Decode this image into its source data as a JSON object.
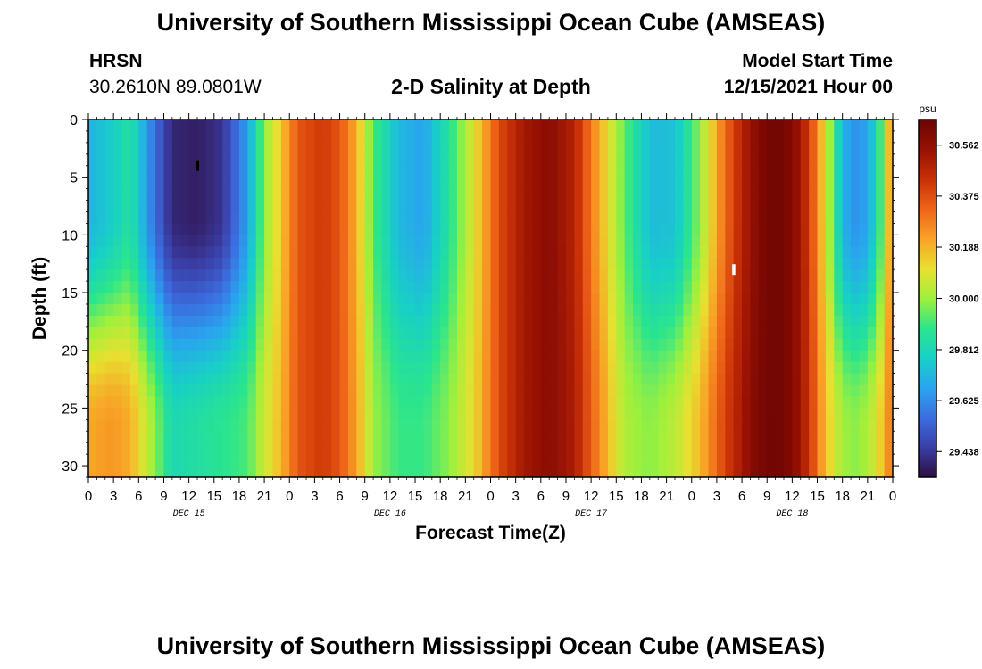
{
  "header": {
    "title": "University of Southern Mississippi Ocean Cube (AMSEAS)",
    "station": "HRSN",
    "coordinates": "30.2610N  89.0801W",
    "subtitle": "2-D Salinity at Depth",
    "start_label": "Model Start Time",
    "start_value": "12/15/2021 Hour 00",
    "footer_title": "University of Southern Mississippi Ocean Cube (AMSEAS)"
  },
  "chart_data": {
    "type": "heatmap",
    "title": "2-D Salinity at Depth",
    "xlabel": "Forecast Time(Z)",
    "ylabel": "Depth (ft)",
    "xlim": [
      0,
      96
    ],
    "ylim": [
      31,
      0
    ],
    "x_tick_values": [
      0,
      3,
      6,
      9,
      12,
      15,
      18,
      21,
      24,
      27,
      30,
      33,
      36,
      39,
      42,
      45,
      48,
      51,
      54,
      57,
      60,
      63,
      66,
      69,
      72,
      75,
      78,
      81,
      84,
      87,
      90,
      93,
      96
    ],
    "x_tick_labels": [
      "0",
      "3",
      "6",
      "9",
      "12",
      "15",
      "18",
      "21",
      "0",
      "3",
      "6",
      "9",
      "12",
      "15",
      "18",
      "21",
      "0",
      "3",
      "6",
      "9",
      "12",
      "15",
      "18",
      "21",
      "0",
      "3",
      "6",
      "9",
      "12",
      "15",
      "18",
      "21",
      "0"
    ],
    "day_labels": [
      {
        "label": "DEC 15",
        "hour": 12
      },
      {
        "label": "DEC 16",
        "hour": 36
      },
      {
        "label": "DEC 17",
        "hour": 60
      },
      {
        "label": "DEC 18",
        "hour": 84
      }
    ],
    "y_tick_values": [
      0,
      5,
      10,
      15,
      20,
      25,
      30
    ],
    "y_tick_labels": [
      "0",
      "5",
      "10",
      "15",
      "20",
      "25",
      "30"
    ],
    "colorbar": {
      "unit": "psu",
      "min": 29.344,
      "max": 30.656,
      "tick_values": [
        30.562,
        30.375,
        30.188,
        30.0,
        29.812,
        29.625,
        29.438
      ],
      "tick_labels": [
        "30.562",
        "30.375",
        "30.188",
        "30.000",
        "29.812",
        "29.625",
        "29.438"
      ],
      "colors": [
        "#2f0d40",
        "#3a3ea6",
        "#3b6ee0",
        "#29a5ef",
        "#18d0c6",
        "#2be58c",
        "#9ff03c",
        "#e8e030",
        "#f8a326",
        "#ef6418",
        "#c83006",
        "#971104",
        "#6b0403"
      ]
    },
    "salinity_profile": {
      "hours": [
        0,
        3,
        5,
        8,
        10,
        13,
        16,
        19,
        21,
        23,
        25,
        28,
        30,
        32,
        34,
        37,
        40,
        43,
        46,
        49,
        52,
        55,
        58,
        61,
        64,
        67,
        70,
        73,
        76,
        78,
        80,
        82,
        84,
        86,
        88,
        90,
        92,
        94,
        96
      ],
      "surface": [
        29.7,
        29.78,
        29.86,
        29.56,
        29.4,
        29.38,
        29.43,
        29.66,
        29.98,
        30.15,
        30.36,
        30.42,
        30.36,
        30.2,
        29.92,
        29.72,
        29.67,
        29.86,
        30.1,
        30.38,
        30.52,
        30.58,
        30.48,
        30.2,
        29.94,
        29.73,
        29.74,
        29.99,
        30.32,
        30.48,
        30.6,
        30.64,
        30.6,
        30.42,
        30.1,
        29.7,
        29.62,
        29.78,
        30.3
      ],
      "bottom": [
        30.21,
        30.24,
        30.2,
        29.98,
        29.82,
        29.85,
        29.88,
        29.92,
        30.06,
        30.18,
        30.36,
        30.42,
        30.36,
        30.22,
        30.0,
        29.9,
        29.9,
        29.98,
        30.12,
        30.38,
        30.52,
        30.58,
        30.5,
        30.26,
        30.02,
        29.98,
        30.04,
        30.18,
        30.4,
        30.52,
        30.62,
        30.64,
        30.6,
        30.44,
        30.16,
        30.0,
        29.98,
        30.08,
        30.32
      ]
    },
    "markers": [
      {
        "hour": 13.0,
        "depth": 4.0,
        "color": "black"
      },
      {
        "hour": 77.0,
        "depth": 13.0,
        "color": "white"
      }
    ]
  }
}
